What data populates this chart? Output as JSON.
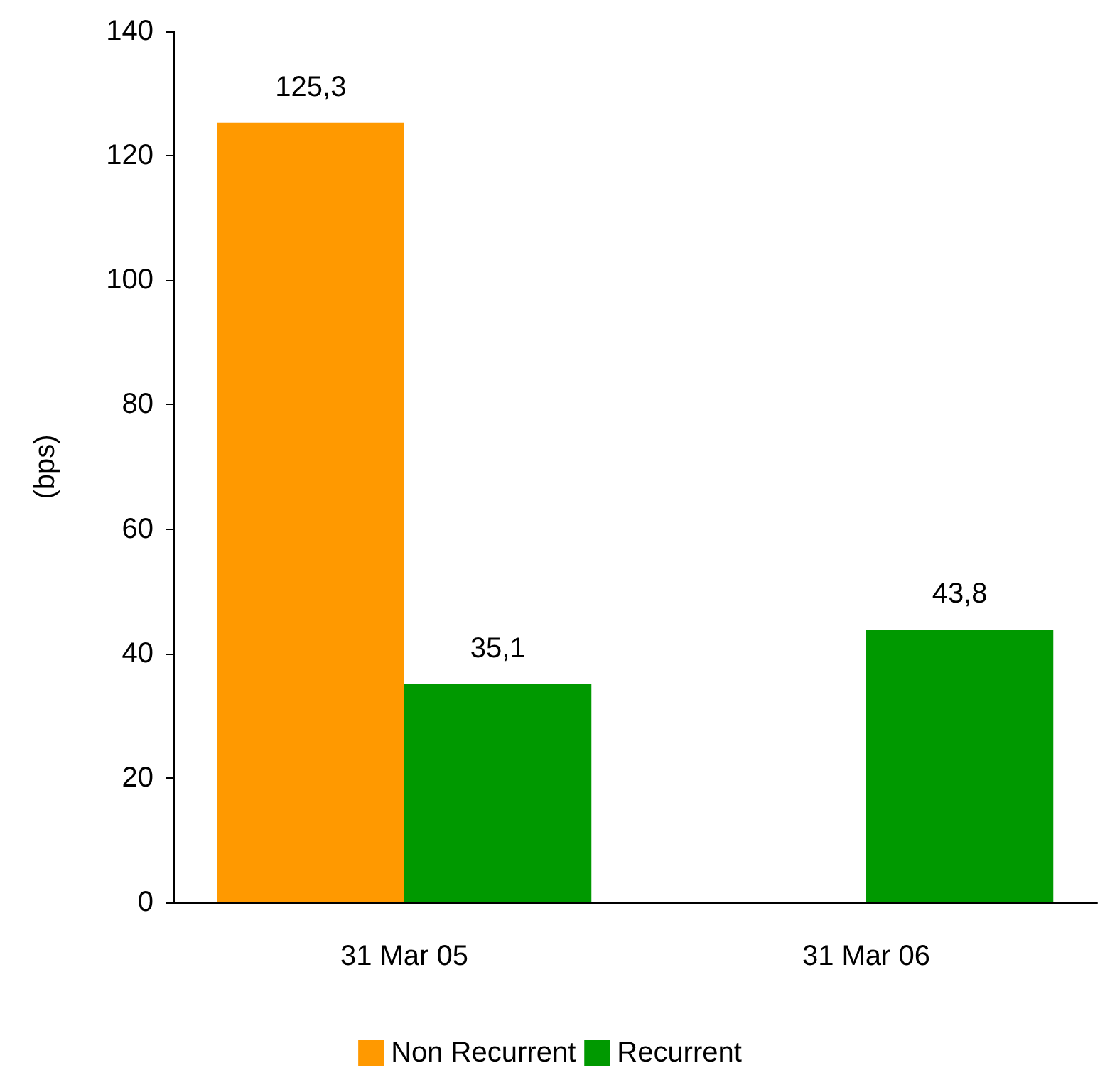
{
  "chart_data": {
    "type": "bar",
    "ylabel": "(bps)",
    "categories": [
      "31 Mar 05",
      "31 Mar 06"
    ],
    "series": [
      {
        "name": "Non Recurrent",
        "color": "#ff9900",
        "values": [
          125.3,
          null
        ],
        "value_labels": [
          "125,3",
          null
        ]
      },
      {
        "name": "Recurrent",
        "color": "#009900",
        "values": [
          35.1,
          43.8
        ],
        "value_labels": [
          "35,1",
          "43,8"
        ]
      }
    ],
    "ylim": [
      0,
      140
    ],
    "yticks": [
      0,
      20,
      40,
      60,
      80,
      100,
      120,
      140
    ],
    "grid": false,
    "legend": "bottom"
  }
}
